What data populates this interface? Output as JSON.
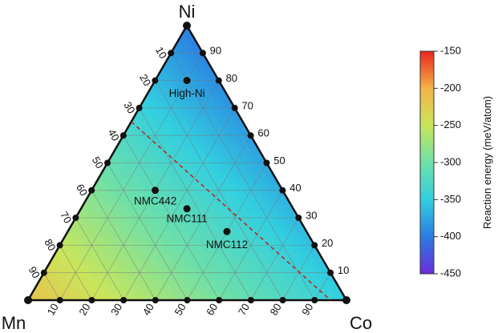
{
  "chart_data": {
    "type": "ternary-contour",
    "corners": {
      "top": "Ni",
      "left": "Mn",
      "right": "Co"
    },
    "tick_values": [
      10,
      20,
      30,
      40,
      50,
      60,
      70,
      80,
      90
    ],
    "tick_labels": [
      "10",
      "20",
      "30",
      "40",
      "50",
      "60",
      "70",
      "80",
      "90"
    ],
    "field_values": {
      "Ni": -400,
      "Co": -350,
      "Mn": -215
    },
    "points": [
      {
        "label": "High-Ni",
        "Ni": 80,
        "Mn": 10,
        "Co": 10
      },
      {
        "label": "NMC442",
        "Ni": 40,
        "Mn": 40,
        "Co": 20
      },
      {
        "label": "NMC111",
        "Ni": 33.3,
        "Mn": 33.3,
        "Co": 33.3
      },
      {
        "label": "NMC112",
        "Ni": 25,
        "Mn": 25,
        "Co": 50
      }
    ],
    "dashed_line": {
      "from": {
        "Ni": 65,
        "Mn": 35,
        "Co": 0
      },
      "to": {
        "Ni": 0,
        "Mn": 5,
        "Co": 95
      }
    },
    "colorbar": {
      "title": "Reaction energy (meV/atom)",
      "min": -450,
      "max": -150,
      "ticks": [
        -150,
        -200,
        -250,
        -300,
        -350,
        -400,
        -450
      ],
      "tick_labels": [
        "-150",
        "-200",
        "-250",
        "-300",
        "-350",
        "-400",
        "-450"
      ],
      "colors": {
        "-450": "#6a2cd8",
        "-400": "#2a7de1",
        "-350": "#33cfe0",
        "-300": "#6fe0a8",
        "-250": "#c9e65b",
        "-200": "#f4b347",
        "-150": "#e8281e"
      }
    }
  }
}
